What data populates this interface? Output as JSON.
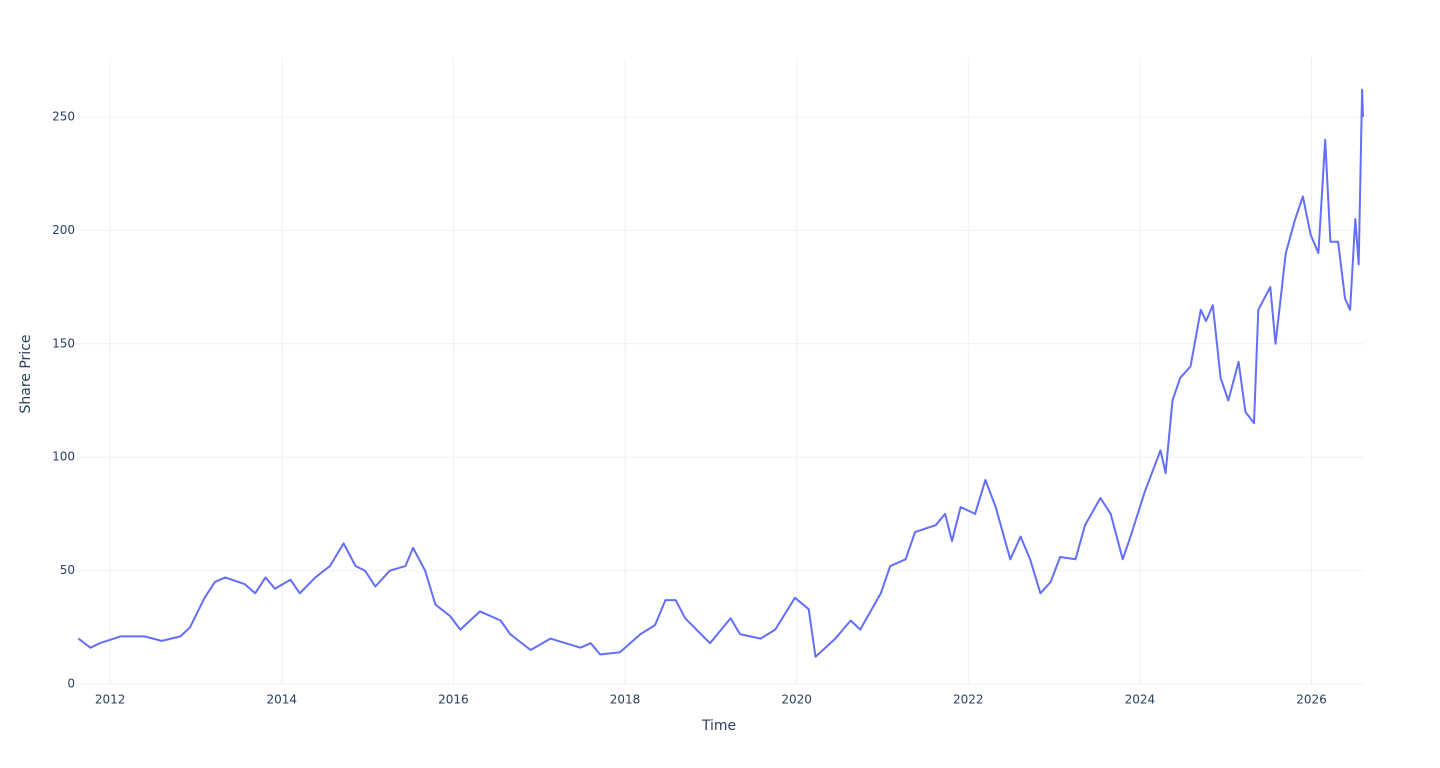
{
  "chart_data": {
    "type": "line",
    "x_label": "Time",
    "y_label": "Share Price",
    "x": [
      2011.63,
      2011.77,
      2011.88,
      2012.12,
      2012.4,
      2012.6,
      2012.82,
      2012.93,
      2013.1,
      2013.22,
      2013.34,
      2013.57,
      2013.69,
      2013.81,
      2013.92,
      2014.1,
      2014.21,
      2014.39,
      2014.56,
      2014.72,
      2014.86,
      2014.97,
      2015.09,
      2015.26,
      2015.44,
      2015.53,
      2015.67,
      2015.79,
      2015.96,
      2016.08,
      2016.31,
      2016.55,
      2016.66,
      2016.9,
      2017.13,
      2017.48,
      2017.6,
      2017.71,
      2017.94,
      2018.18,
      2018.35,
      2018.47,
      2018.59,
      2018.7,
      2018.99,
      2019.23,
      2019.34,
      2019.58,
      2019.75,
      2019.98,
      2020.14,
      2020.22,
      2020.45,
      2020.63,
      2020.74,
      2020.98,
      2021.09,
      2021.27,
      2021.38,
      2021.62,
      2021.73,
      2021.81,
      2021.91,
      2022.08,
      2022.2,
      2022.32,
      2022.49,
      2022.61,
      2022.72,
      2022.84,
      2022.96,
      2023.07,
      2023.25,
      2023.36,
      2023.54,
      2023.66,
      2023.8,
      2023.89,
      2024.06,
      2024.24,
      2024.3,
      2024.38,
      2024.47,
      2024.59,
      2024.71,
      2024.77,
      2024.85,
      2024.94,
      2025.03,
      2025.15,
      2025.23,
      2025.33,
      2025.38,
      2025.52,
      2025.58,
      2025.7,
      2025.81,
      2025.9,
      2025.99,
      2026.08,
      2026.16,
      2026.22,
      2026.31,
      2026.39,
      2026.45,
      2026.51,
      2026.55,
      2026.59,
      2026.6
    ],
    "values": [
      20,
      16,
      18,
      21,
      21,
      19,
      21,
      25,
      38,
      45,
      47,
      44,
      40,
      47,
      42,
      46,
      40,
      47,
      52,
      62,
      52,
      50,
      43,
      50,
      52,
      60,
      50,
      35,
      30,
      24,
      32,
      28,
      22,
      15,
      20,
      16,
      18,
      13,
      14,
      22,
      26,
      37,
      37,
      29,
      18,
      29,
      22,
      20,
      24,
      38,
      33,
      12,
      20,
      28,
      24,
      40,
      52,
      55,
      67,
      70,
      75,
      63,
      78,
      75,
      90,
      78,
      55,
      65,
      55,
      40,
      45,
      56,
      55,
      70,
      82,
      75,
      55,
      65,
      85,
      103,
      93,
      125,
      135,
      140,
      165,
      160,
      167,
      135,
      125,
      142,
      120,
      115,
      165,
      175,
      150,
      190,
      205,
      215,
      198,
      190,
      240,
      195,
      195,
      170,
      165,
      205,
      185,
      262,
      250
    ],
    "color": "#636efa",
    "xlim": [
      2011.59,
      2026.6
    ],
    "xticks": [
      2012,
      2014,
      2016,
      2018,
      2020,
      2022,
      2024,
      2026
    ],
    "ylim": [
      0,
      276
    ],
    "yticks": [
      0,
      50,
      100,
      150,
      200,
      250
    ],
    "grid": true
  }
}
